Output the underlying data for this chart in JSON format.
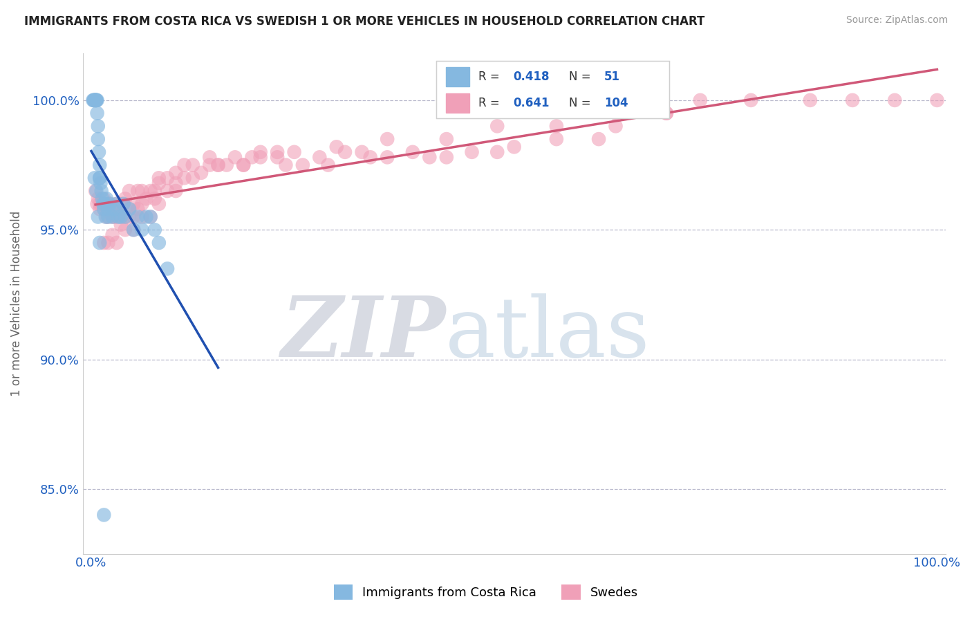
{
  "title": "IMMIGRANTS FROM COSTA RICA VS SWEDISH 1 OR MORE VEHICLES IN HOUSEHOLD CORRELATION CHART",
  "source": "Source: ZipAtlas.com",
  "ylabel": "1 or more Vehicles in Household",
  "xlim": [
    -1,
    101
  ],
  "ylim": [
    82.5,
    101.8
  ],
  "yticks": [
    85.0,
    90.0,
    95.0,
    100.0
  ],
  "ytick_labels": [
    "85.0%",
    "90.0%",
    "95.0%",
    "100.0%"
  ],
  "xtick_labels": [
    "0.0%",
    "100.0%"
  ],
  "r_blue": 0.418,
  "n_blue": 51,
  "r_pink": 0.641,
  "n_pink": 104,
  "blue_color": "#85b8e0",
  "pink_color": "#f0a0b8",
  "blue_line_color": "#2050b0",
  "pink_line_color": "#d05878",
  "legend_label_blue": "Immigrants from Costa Rica",
  "legend_label_pink": "Swedes",
  "watermark_zip": "ZIP",
  "watermark_atlas": "atlas",
  "blue_scatter_x": [
    0.2,
    0.3,
    0.3,
    0.4,
    0.4,
    0.5,
    0.5,
    0.5,
    0.6,
    0.6,
    0.6,
    0.7,
    0.7,
    0.8,
    0.8,
    0.9,
    1.0,
    1.0,
    1.0,
    1.1,
    1.2,
    1.3,
    1.4,
    1.5,
    1.6,
    1.7,
    1.8,
    2.0,
    2.0,
    2.2,
    2.5,
    2.8,
    3.0,
    3.2,
    3.5,
    3.8,
    4.0,
    4.5,
    5.0,
    5.5,
    6.0,
    6.5,
    7.0,
    7.5,
    8.0,
    9.0,
    0.4,
    0.6,
    0.8,
    1.0,
    1.5
  ],
  "blue_scatter_y": [
    100.0,
    100.0,
    100.0,
    100.0,
    100.0,
    100.0,
    100.0,
    100.0,
    100.0,
    100.0,
    100.0,
    100.0,
    99.5,
    99.0,
    98.5,
    98.0,
    97.5,
    97.0,
    97.0,
    96.8,
    96.5,
    96.2,
    96.0,
    95.8,
    96.0,
    95.5,
    96.2,
    95.5,
    95.8,
    96.0,
    95.5,
    95.8,
    96.0,
    95.5,
    95.5,
    96.0,
    95.5,
    95.8,
    95.0,
    95.5,
    95.0,
    95.5,
    95.5,
    95.0,
    94.5,
    93.5,
    97.0,
    96.5,
    95.5,
    94.5,
    84.0
  ],
  "pink_scatter_x": [
    0.5,
    0.7,
    0.8,
    1.0,
    1.0,
    1.2,
    1.5,
    1.5,
    1.8,
    2.0,
    2.0,
    2.2,
    2.5,
    2.5,
    2.8,
    3.0,
    3.0,
    3.2,
    3.5,
    3.5,
    3.8,
    4.0,
    4.0,
    4.5,
    4.5,
    5.0,
    5.0,
    5.5,
    6.0,
    6.0,
    6.5,
    7.0,
    7.5,
    8.0,
    8.0,
    9.0,
    10.0,
    10.0,
    11.0,
    12.0,
    13.0,
    14.0,
    15.0,
    16.0,
    17.0,
    18.0,
    20.0,
    20.0,
    22.0,
    23.0,
    25.0,
    27.0,
    30.0,
    32.0,
    35.0,
    38.0,
    40.0,
    42.0,
    45.0,
    48.0,
    50.0,
    55.0,
    60.0,
    62.0,
    65.0,
    68.0,
    2.5,
    3.0,
    4.0,
    5.0,
    6.0,
    7.0,
    8.0,
    10.0,
    12.0,
    15.0,
    18.0,
    22.0,
    28.0,
    33.0,
    1.5,
    2.0,
    3.5,
    4.5,
    5.5,
    7.5,
    9.0,
    11.0,
    14.0,
    19.0,
    24.0,
    29.0,
    35.0,
    42.0,
    48.0,
    55.0,
    62.0,
    68.0,
    72.0,
    78.0,
    85.0,
    90.0,
    95.0,
    100.0
  ],
  "pink_scatter_y": [
    96.5,
    96.0,
    96.2,
    96.0,
    95.8,
    96.0,
    96.2,
    95.8,
    95.5,
    96.0,
    95.5,
    96.0,
    95.5,
    95.8,
    95.5,
    96.0,
    95.5,
    95.8,
    96.0,
    95.5,
    96.0,
    96.2,
    95.5,
    96.5,
    95.8,
    96.0,
    95.5,
    96.5,
    96.0,
    96.5,
    96.2,
    96.5,
    96.5,
    97.0,
    96.8,
    97.0,
    97.2,
    96.8,
    97.5,
    97.5,
    97.2,
    97.8,
    97.5,
    97.5,
    97.8,
    97.5,
    97.8,
    98.0,
    97.8,
    97.5,
    97.5,
    97.8,
    98.0,
    98.0,
    97.8,
    98.0,
    97.8,
    97.8,
    98.0,
    98.0,
    98.2,
    98.5,
    98.5,
    99.0,
    100.0,
    99.5,
    94.8,
    94.5,
    95.0,
    95.0,
    95.5,
    95.5,
    96.0,
    96.5,
    97.0,
    97.5,
    97.5,
    98.0,
    97.5,
    97.8,
    94.5,
    94.5,
    95.2,
    95.5,
    95.8,
    96.2,
    96.5,
    97.0,
    97.5,
    97.8,
    98.0,
    98.2,
    98.5,
    98.5,
    99.0,
    99.0,
    99.5,
    99.5,
    100.0,
    100.0,
    100.0,
    100.0,
    100.0,
    100.0
  ]
}
